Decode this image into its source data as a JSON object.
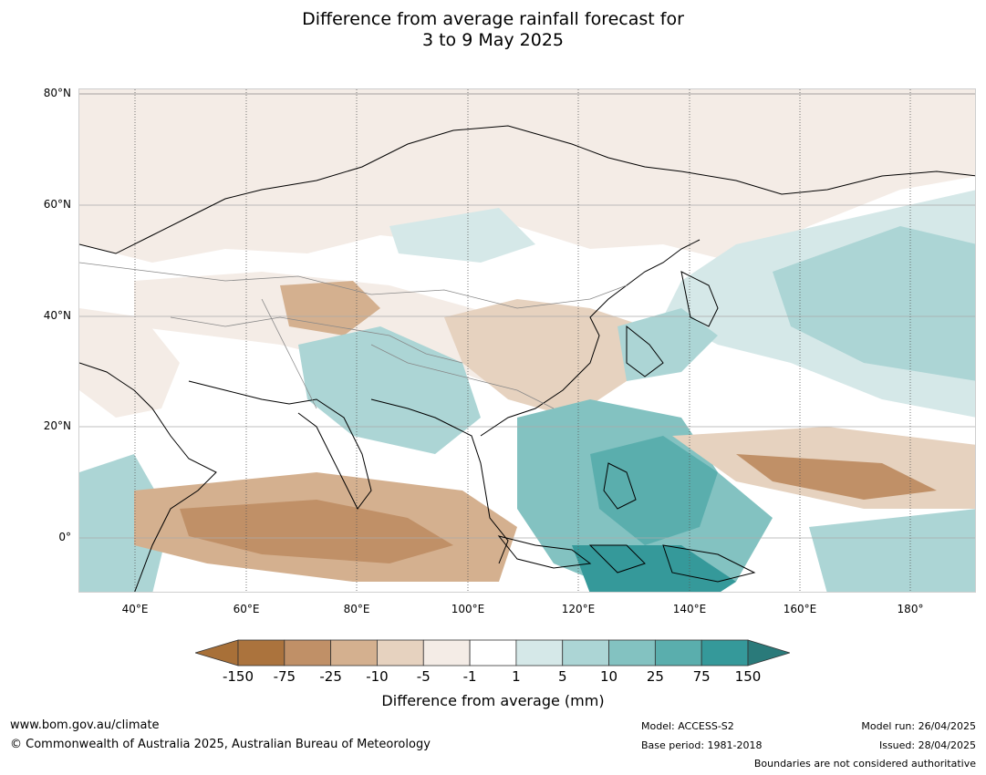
{
  "title": {
    "line1": "Difference from average rainfall forecast for",
    "line2": "3 to 9 May 2025"
  },
  "map": {
    "lat_labels": [
      "80°N",
      "60°N",
      "40°N",
      "20°N",
      "0°"
    ],
    "lon_labels": [
      "40°E",
      "60°E",
      "80°E",
      "100°E",
      "120°E",
      "140°E",
      "160°E",
      "180°"
    ]
  },
  "legend": {
    "title": "Difference from average (mm)",
    "ticks": [
      "-150",
      "-75",
      "-25",
      "-10",
      "-5",
      "-1",
      "1",
      "5",
      "10",
      "25",
      "75",
      "150"
    ],
    "colors": [
      "#a87038",
      "#ab733d",
      "#c09067",
      "#d4b08f",
      "#e6d2bf",
      "#f4ece6",
      "#ffffff",
      "#d5e8e8",
      "#acd5d5",
      "#83c2c1",
      "#5aaead",
      "#35999a",
      "#2a7a7a"
    ]
  },
  "footer": {
    "website": "www.bom.gov.au/climate",
    "copyright": "© Commonwealth of Australia 2025, Australian Bureau of Meteorology",
    "model": "Model: ACCESS-S2",
    "base_period": "Base period: 1981-2018",
    "model_run": "Model run: 26/04/2025",
    "issued": "Issued: 28/04/2025",
    "boundaries": "Boundaries are not considered authoritative"
  }
}
